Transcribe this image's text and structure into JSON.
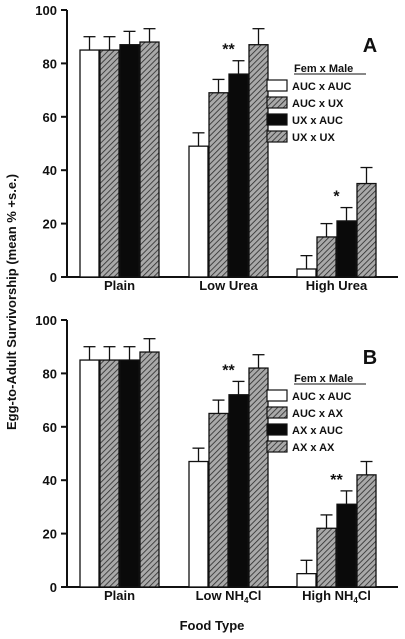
{
  "figure": {
    "ylabel": "Egg-to-Adult Survivorship (mean % +s.e.)",
    "xlabel": "Food Type",
    "colors": {
      "bar_fill_1": "#ffffff",
      "bar_fill_2": "#9a9a9a",
      "bar_fill_3": "#0a0a0a",
      "bar_fill_4": "#8c8c8c",
      "ink": "#111111"
    }
  },
  "chart_data": [
    {
      "type": "bar",
      "panel_label": "A",
      "ylim": [
        0,
        100
      ],
      "yticks": [
        0,
        20,
        40,
        60,
        80,
        100
      ],
      "categories": [
        "Plain",
        "Low Urea",
        "High Urea"
      ],
      "legend_title": "Fem x Male",
      "legend_position": "right",
      "series": [
        {
          "name": "AUC x AUC",
          "fill": "white",
          "values": [
            85,
            49,
            3
          ],
          "errors": [
            5,
            5,
            5
          ]
        },
        {
          "name": "AUC x UX",
          "fill": "hatched",
          "values": [
            85,
            69,
            15
          ],
          "errors": [
            5,
            5,
            5
          ]
        },
        {
          "name": "UX x AUC",
          "fill": "black",
          "values": [
            87,
            76,
            21
          ],
          "errors": [
            5,
            5,
            5
          ]
        },
        {
          "name": "UX x UX",
          "fill": "hatched",
          "values": [
            88,
            87,
            35
          ],
          "errors": [
            5,
            6,
            6
          ]
        }
      ],
      "annotations": [
        {
          "category": "Low Urea",
          "text": "**"
        },
        {
          "category": "High Urea",
          "text": "*"
        }
      ]
    },
    {
      "type": "bar",
      "panel_label": "B",
      "ylim": [
        0,
        100
      ],
      "yticks": [
        0,
        20,
        40,
        60,
        80,
        100
      ],
      "categories": [
        "Plain",
        "Low NH4Cl",
        "High NH4Cl"
      ],
      "legend_title": "Fem x Male",
      "legend_position": "right",
      "series": [
        {
          "name": "AUC x AUC",
          "fill": "white",
          "values": [
            85,
            47,
            5
          ],
          "errors": [
            5,
            5,
            5
          ]
        },
        {
          "name": "AUC x AX",
          "fill": "hatched",
          "values": [
            85,
            65,
            22
          ],
          "errors": [
            5,
            5,
            5
          ]
        },
        {
          "name": "AX x AUC",
          "fill": "black",
          "values": [
            85,
            72,
            31
          ],
          "errors": [
            5,
            5,
            5
          ]
        },
        {
          "name": "AX x AX",
          "fill": "hatched",
          "values": [
            88,
            82,
            42
          ],
          "errors": [
            5,
            5,
            5
          ]
        }
      ],
      "annotations": [
        {
          "category": "Low NH4Cl",
          "text": "**"
        },
        {
          "category": "High NH4Cl",
          "text": "**"
        }
      ]
    }
  ]
}
